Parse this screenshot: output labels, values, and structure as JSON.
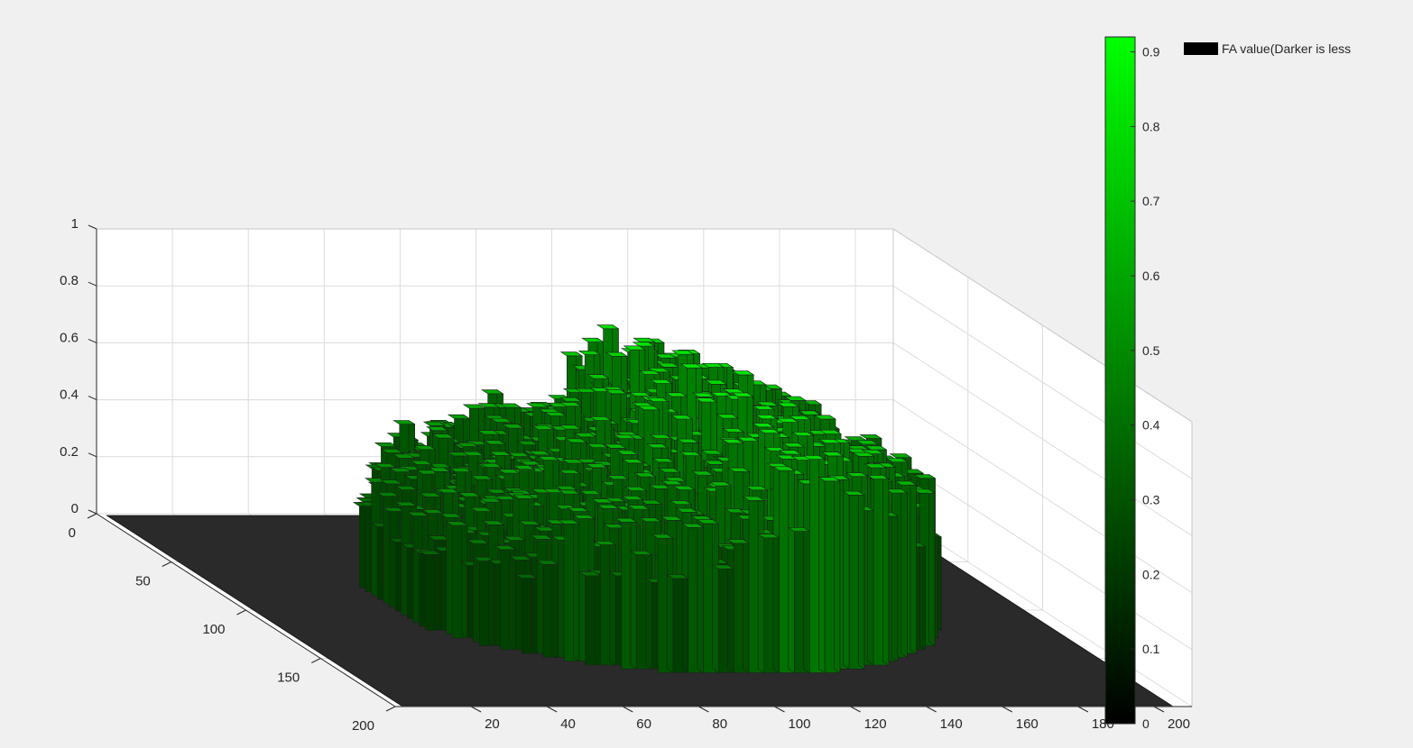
{
  "chart_data": {
    "type": "bar3",
    "title": "",
    "legend": {
      "label": "FA value(Darker is less",
      "color": "#000000",
      "placement": "top-right"
    },
    "z_axis": {
      "range": [
        0,
        1
      ],
      "ticks": [
        "0",
        "0.2",
        "0.4",
        "0.6",
        "0.8",
        "1"
      ]
    },
    "row_axis": {
      "range": [
        0,
        200
      ],
      "ticks": [
        "0",
        "50",
        "100",
        "150",
        "200"
      ]
    },
    "col_axis": {
      "range": [
        0,
        210
      ],
      "ticks": [
        "20",
        "40",
        "60",
        "80",
        "100",
        "120",
        "140",
        "160",
        "180",
        "200"
      ]
    },
    "colorbar": {
      "range": [
        0,
        0.92
      ],
      "ticks": [
        "0",
        "0.1",
        "0.2",
        "0.3",
        "0.4",
        "0.5",
        "0.6",
        "0.7",
        "0.8",
        "0.9"
      ],
      "colormap": [
        "#000000",
        "#00ff00"
      ]
    },
    "grid": true,
    "data_summary": {
      "nonzero_region": "disc centered near row 95, col 105 with radius about 70",
      "value_range_inside": [
        0.1,
        0.92
      ],
      "outside_value": 0,
      "back_edge_profile": [
        {
          "col": 40,
          "value": 0.5
        },
        {
          "col": 60,
          "value": 0.58
        },
        {
          "col": 80,
          "value": 0.62
        },
        {
          "col": 100,
          "value": 0.7
        },
        {
          "col": 120,
          "value": 0.92
        },
        {
          "col": 140,
          "value": 0.82
        },
        {
          "col": 160,
          "value": 0.72
        },
        {
          "col": 175,
          "value": 0.6
        }
      ]
    }
  }
}
